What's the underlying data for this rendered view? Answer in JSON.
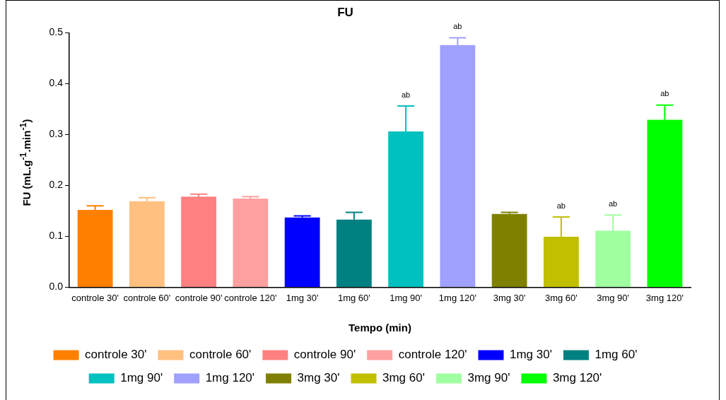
{
  "chart_data": {
    "type": "bar",
    "title": "FU",
    "xlabel": "Tempo (min)",
    "ylabel": "FU (mL.g$^{-1}$.min$^{-1}$)",
    "categories": [
      "controle 30'",
      "controle 60'",
      "controle 90'",
      "controle 120'",
      "1mg 30'",
      "1mg 60'",
      "1mg 90'",
      "1mg 120'",
      "3mg 30'",
      "3mg 60'",
      "3mg 90'",
      "3mg 120'"
    ],
    "series": [
      {
        "name": "controle 30'",
        "color": "#ff8000",
        "values": [
          0.152,
          null,
          null,
          null,
          null,
          null,
          null,
          null,
          null,
          null,
          null,
          null
        ],
        "errors": [
          0.008,
          null,
          null,
          null,
          null,
          null,
          null,
          null,
          null,
          null,
          null,
          null
        ]
      },
      {
        "name": "controle 60'",
        "color": "#ffc080",
        "values": [
          null,
          0.169,
          null,
          null,
          null,
          null,
          null,
          null,
          null,
          null,
          null,
          null
        ],
        "errors": [
          null,
          0.007,
          null,
          null,
          null,
          null,
          null,
          null,
          null,
          null,
          null,
          null
        ]
      },
      {
        "name": "controle 90'",
        "color": "#ff8080",
        "values": [
          null,
          null,
          0.178,
          null,
          null,
          null,
          null,
          null,
          null,
          null,
          null,
          null
        ],
        "errors": [
          null,
          null,
          0.005,
          null,
          null,
          null,
          null,
          null,
          null,
          null,
          null,
          null
        ]
      },
      {
        "name": "controle 120'",
        "color": "#ffa0a0",
        "values": [
          null,
          null,
          null,
          0.174,
          null,
          null,
          null,
          null,
          null,
          null,
          null,
          null
        ],
        "errors": [
          null,
          null,
          null,
          0.004,
          null,
          null,
          null,
          null,
          null,
          null,
          null,
          null
        ]
      },
      {
        "name": "1mg 30'",
        "color": "#0000ff",
        "values": [
          null,
          null,
          null,
          null,
          0.137,
          null,
          null,
          null,
          null,
          null,
          null,
          null
        ],
        "errors": [
          null,
          null,
          null,
          null,
          0.003,
          null,
          null,
          null,
          null,
          null,
          null,
          null
        ]
      },
      {
        "name": "1mg 60'",
        "color": "#008080",
        "values": [
          null,
          null,
          null,
          null,
          null,
          0.133,
          null,
          null,
          null,
          null,
          null,
          null
        ],
        "errors": [
          null,
          null,
          null,
          null,
          null,
          0.014,
          null,
          null,
          null,
          null,
          null,
          null
        ]
      },
      {
        "name": "1mg 90'",
        "color": "#00c0c0",
        "values": [
          null,
          null,
          null,
          null,
          null,
          null,
          0.306,
          null,
          null,
          null,
          null,
          null
        ],
        "errors": [
          null,
          null,
          null,
          null,
          null,
          null,
          0.05,
          null,
          null,
          null,
          null,
          null
        ]
      },
      {
        "name": "1mg 120'",
        "color": "#a0a0ff",
        "values": [
          null,
          null,
          null,
          null,
          null,
          null,
          null,
          0.476,
          null,
          null,
          null,
          null
        ],
        "errors": [
          null,
          null,
          null,
          null,
          null,
          null,
          null,
          0.014,
          null,
          null,
          null,
          null
        ]
      },
      {
        "name": "3mg 30'",
        "color": "#808000",
        "values": [
          null,
          null,
          null,
          null,
          null,
          null,
          null,
          null,
          0.144,
          null,
          null,
          null
        ],
        "errors": [
          null,
          null,
          null,
          null,
          null,
          null,
          null,
          null,
          0.003,
          null,
          null,
          null
        ]
      },
      {
        "name": "3mg 60'",
        "color": "#c0c000",
        "values": [
          null,
          null,
          null,
          null,
          null,
          null,
          null,
          null,
          null,
          0.099,
          null,
          null
        ],
        "errors": [
          null,
          null,
          null,
          null,
          null,
          null,
          null,
          null,
          null,
          0.039,
          null,
          null
        ]
      },
      {
        "name": "3mg 90'",
        "color": "#a0ffa0",
        "values": [
          null,
          null,
          null,
          null,
          null,
          null,
          null,
          null,
          null,
          null,
          0.111,
          null
        ],
        "errors": [
          null,
          null,
          null,
          null,
          null,
          null,
          null,
          null,
          null,
          null,
          0.031,
          null
        ]
      },
      {
        "name": "3mg 120'",
        "color": "#00ff00",
        "values": [
          null,
          null,
          null,
          null,
          null,
          null,
          null,
          null,
          null,
          null,
          null,
          0.329
        ],
        "errors": [
          null,
          null,
          null,
          null,
          null,
          null,
          null,
          null,
          null,
          null,
          null,
          0.029
        ]
      }
    ],
    "ylim": [
      0,
      0.5
    ],
    "yticks": [
      {
        "value": 0,
        "label": "0.0"
      },
      0.1,
      0.2,
      0.3,
      0.4,
      0.5
    ],
    "annotations": [
      {
        "text": "ab",
        "x": "1mg 90'",
        "y": 0.356
      },
      {
        "text": "ab",
        "x": "1mg 120'",
        "y": 0.49
      },
      {
        "text": "ab",
        "x": "3mg 60'",
        "y": 0.138
      },
      {
        "text": "ab",
        "x": "3mg 90'",
        "y": 0.142
      },
      {
        "text": "ab",
        "x": "3mg 120'",
        "y": 0.358
      }
    ],
    "grid": false,
    "legend": "bottom"
  }
}
